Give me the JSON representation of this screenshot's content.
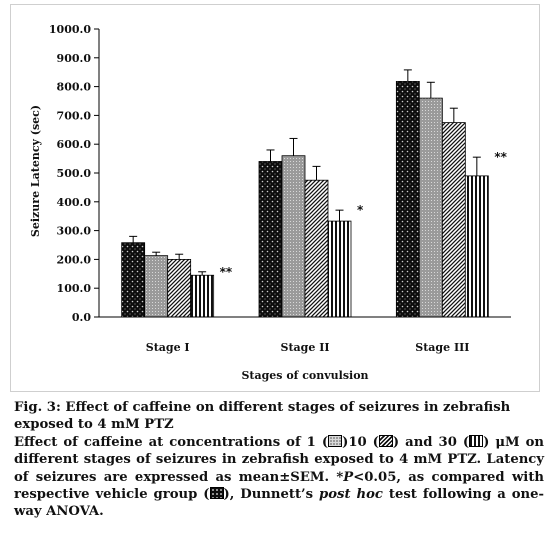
{
  "chart_data": {
    "type": "bar",
    "ylabel": "Seizure Latency (sec)",
    "xlabel": "Stages of convulsion",
    "ylim": [
      0,
      1000
    ],
    "y_ticks": [
      "0.0",
      "100.0",
      "200.0",
      "300.0",
      "400.0",
      "500.0",
      "600.0",
      "700.0",
      "800.0",
      "900.0",
      "1000.0"
    ],
    "categories": [
      "Stage I",
      "Stage II",
      "Stage III"
    ],
    "series": [
      {
        "values": [
          258,
          540,
          818
        ],
        "errors": [
          22,
          40,
          40
        ],
        "pattern": "dots-dark"
      },
      {
        "values": [
          213,
          560,
          760
        ],
        "errors": [
          12,
          60,
          55
        ],
        "pattern": "grey-grid"
      },
      {
        "values": [
          200,
          475,
          675
        ],
        "errors": [
          18,
          48,
          50
        ],
        "pattern": "diagonal"
      },
      {
        "values": [
          145,
          333,
          490
        ],
        "errors": [
          12,
          38,
          65
        ],
        "pattern": "vertical"
      }
    ],
    "significance": [
      {
        "category": 0,
        "series": 3,
        "label": "**"
      },
      {
        "category": 1,
        "series": 3,
        "label": "*"
      },
      {
        "category": 2,
        "series": 3,
        "label": "**"
      }
    ]
  },
  "caption": {
    "title": "Fig. 3: Effect of caffeine on different stages of seizures in zebrafish exposed to 4 mM PTZ",
    "body_1": "Effect of caffeine at concentrations of 1 (",
    "body_2": ")10 (",
    "body_3": ") and 30 (",
    "body_4": ") μM on different stages of seizures in zebrafish exposed to 4 mM PTZ. Latency of seizures are expressed as mean±SEM. *",
    "body_p": "P",
    "body_5": "<0.05, as compared with respective vehicle group (",
    "body_6": "), Dunnett’s ",
    "body_posthoc": "post hoc",
    "body_7": " test following a one-way ANOVA."
  }
}
